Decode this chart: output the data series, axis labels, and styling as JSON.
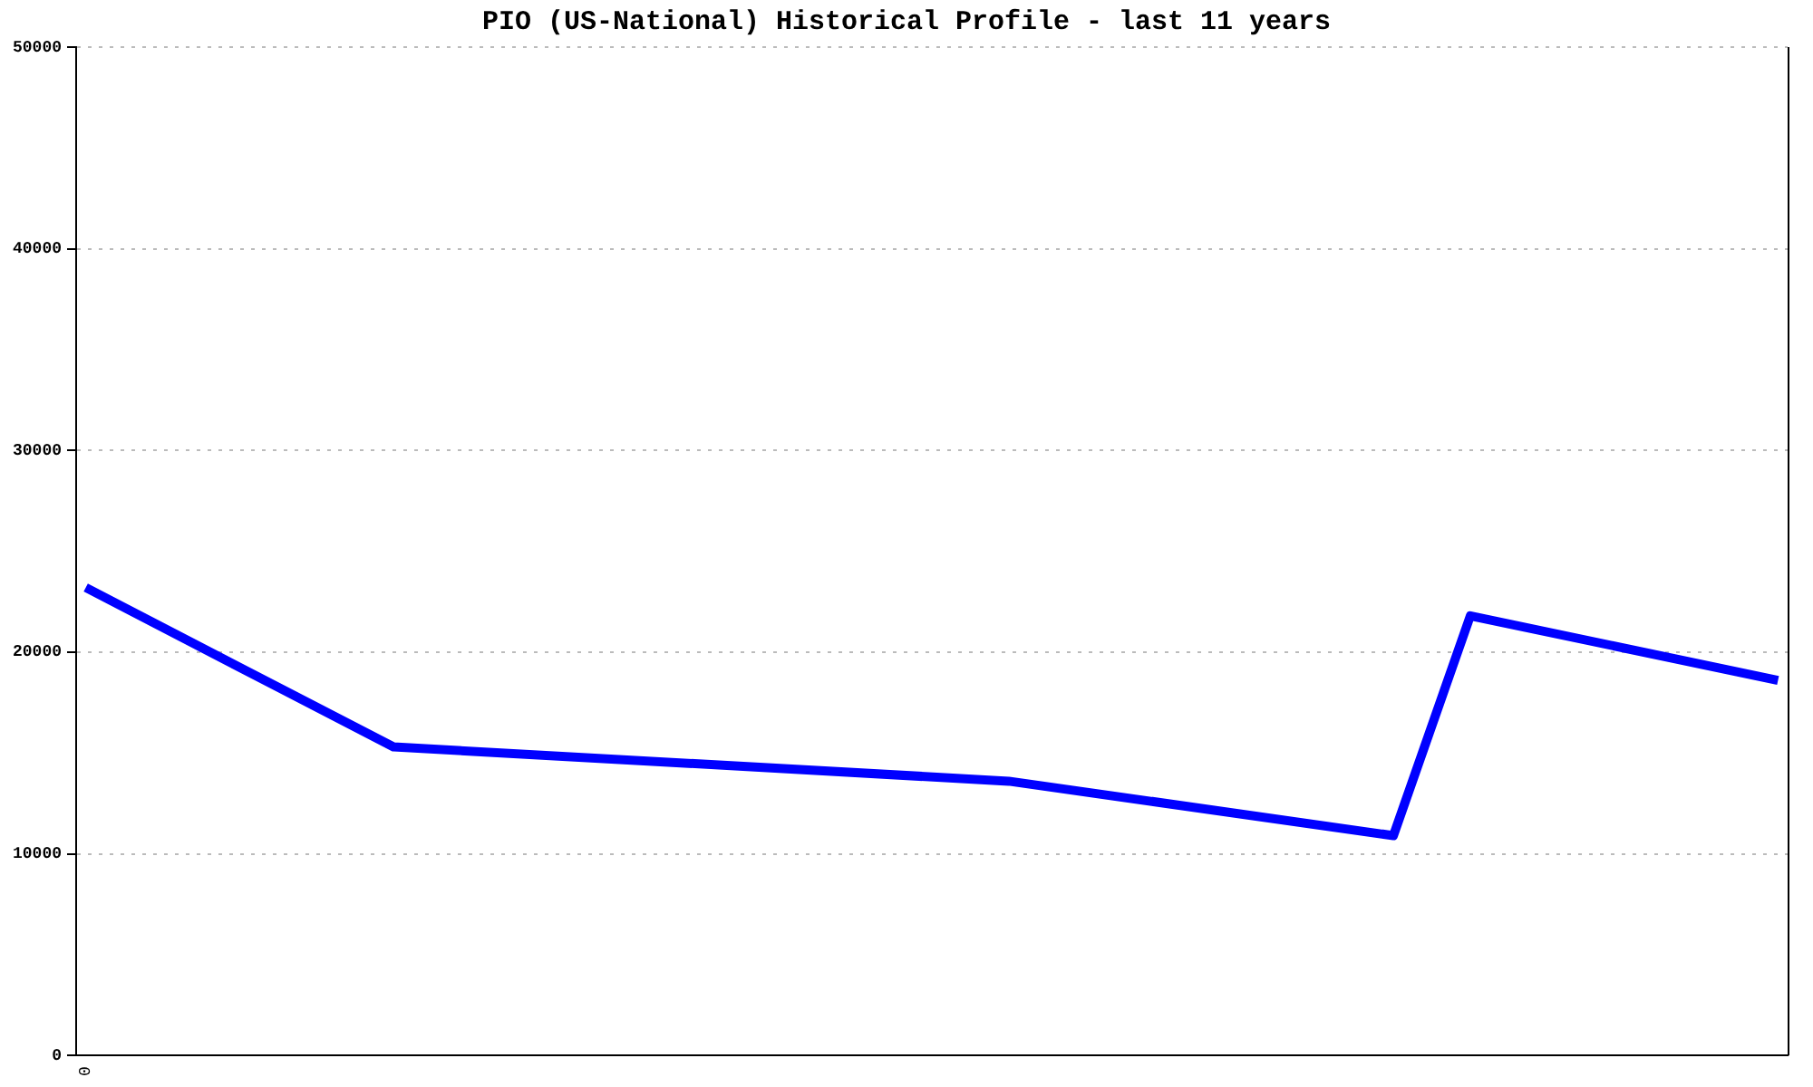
{
  "chart_data": {
    "type": "line",
    "title": "PIO (US-National) Historical Profile - last 11 years",
    "categories": [
      "0",
      null,
      null,
      null,
      null,
      null,
      null,
      null,
      null,
      null,
      null,
      null,
      null,
      null,
      null,
      null,
      null,
      null,
      null,
      null,
      null,
      null,
      null,
      null,
      null,
      null,
      null,
      null,
      null,
      null,
      null,
      null,
      null,
      null,
      null,
      null,
      null,
      null,
      null,
      null,
      null,
      null,
      null,
      null,
      null,
      null,
      null,
      null,
      null,
      null,
      null,
      null,
      null,
      null,
      null,
      null,
      null,
      null,
      null,
      null,
      null,
      null,
      null,
      null,
      null,
      null,
      null,
      null,
      null,
      null,
      null,
      null,
      null,
      null,
      null,
      null,
      null,
      null,
      null,
      null,
      null,
      null,
      null,
      null,
      null,
      null,
      null,
      null,
      null
    ],
    "series": [
      {
        "color": "#0000ff",
        "values": [
          23200,
          null,
          null,
          null,
          null,
          null,
          null,
          null,
          null,
          null,
          null,
          null,
          null,
          null,
          null,
          null,
          15300,
          null,
          null,
          null,
          null,
          null,
          null,
          null,
          null,
          null,
          null,
          null,
          null,
          null,
          null,
          null,
          null,
          null,
          null,
          null,
          null,
          null,
          null,
          null,
          null,
          null,
          null,
          null,
          null,
          null,
          null,
          null,
          13600,
          null,
          null,
          null,
          null,
          null,
          null,
          null,
          null,
          null,
          null,
          null,
          null,
          null,
          null,
          null,
          null,
          null,
          null,
          null,
          10900,
          null,
          null,
          null,
          21800,
          null,
          null,
          null,
          null,
          null,
          null,
          null,
          null,
          null,
          null,
          null,
          null,
          null,
          null,
          null,
          18600
        ]
      }
    ],
    "ylim": [
      0,
      50000
    ],
    "yticks": [
      0,
      10000,
      20000,
      30000,
      40000,
      50000
    ],
    "grid": "y",
    "legend": false,
    "marker": "none",
    "line_style": "solid"
  }
}
